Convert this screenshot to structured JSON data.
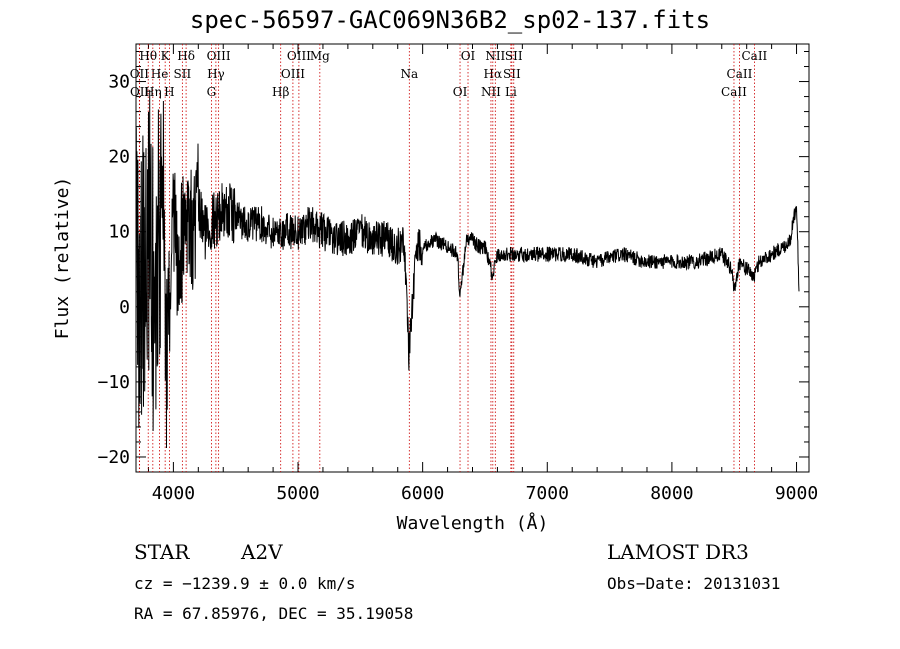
{
  "chart_data": {
    "type": "line",
    "title": "spec-56597-GAC069N36B2_sp02-137.fits",
    "xlabel": "Wavelength (Å)",
    "ylabel": "Flux (relative)",
    "xlim": [
      3700,
      9100
    ],
    "ylim": [
      -22,
      35
    ],
    "xticks": [
      4000,
      5000,
      6000,
      7000,
      8000,
      9000
    ],
    "yticks": [
      -20,
      -10,
      0,
      10,
      20,
      30
    ],
    "grid": false,
    "series": [
      {
        "name": "flux",
        "x": [
          3700,
          3750,
          3800,
          3850,
          3900,
          3950,
          4000,
          4050,
          4100,
          4150,
          4200,
          4250,
          4300,
          4350,
          4400,
          4500,
          4600,
          4700,
          4800,
          4900,
          5000,
          5100,
          5200,
          5300,
          5400,
          5500,
          5600,
          5700,
          5800,
          5850,
          5890,
          5950,
          6000,
          6100,
          6200,
          6280,
          6300,
          6350,
          6400,
          6450,
          6500,
          6563,
          6600,
          6700,
          6800,
          6900,
          7000,
          7200,
          7400,
          7600,
          7800,
          8000,
          8200,
          8400,
          8480,
          8500,
          8540,
          8600,
          8662,
          8700,
          8800,
          8900,
          8950,
          9000,
          9020
        ],
        "y": [
          5,
          2,
          12,
          0,
          16,
          -5,
          10,
          6,
          14,
          9,
          13,
          10,
          11,
          12,
          13,
          12,
          11,
          11,
          10,
          10,
          10,
          11,
          10,
          9,
          9,
          10,
          9,
          9,
          8,
          9,
          -6,
          8,
          8,
          9,
          8,
          7,
          1,
          9,
          9,
          8,
          8,
          4,
          7,
          7,
          7,
          7,
          7,
          7,
          6,
          7,
          6,
          6,
          6,
          7,
          5,
          2,
          6,
          5,
          4,
          6,
          7,
          8,
          9,
          14,
          2
        ]
      }
    ],
    "lines": [
      {
        "label": "Hθ",
        "wl": 3798
      },
      {
        "label": "OII",
        "wl": 3727
      },
      {
        "label": "OII",
        "wl": 3729
      },
      {
        "label": "K",
        "wl": 3934
      },
      {
        "label": "He",
        "wl": 3889
      },
      {
        "label": "Hη",
        "wl": 3835
      },
      {
        "label": "Hδ",
        "wl": 4102
      },
      {
        "label": "SII",
        "wl": 4072
      },
      {
        "label": "H",
        "wl": 3968
      },
      {
        "label": "OIII",
        "wl": 4363
      },
      {
        "label": "Hγ",
        "wl": 4341
      },
      {
        "label": "G",
        "wl": 4305
      },
      {
        "label": "OIII",
        "wl": 5007
      },
      {
        "label": "OIII",
        "wl": 4959
      },
      {
        "label": "Hβ",
        "wl": 4861
      },
      {
        "label": "Mg",
        "wl": 5175
      },
      {
        "label": "Na",
        "wl": 5893
      },
      {
        "label": "OI",
        "wl": 6300
      },
      {
        "label": "OI",
        "wl": 6364
      },
      {
        "label": "Hα",
        "wl": 6563
      },
      {
        "label": "NII",
        "wl": 6548
      },
      {
        "label": "NII",
        "wl": 6583
      },
      {
        "label": "SII",
        "wl": 6716
      },
      {
        "label": "Li",
        "wl": 6708
      },
      {
        "label": "SII",
        "wl": 6731
      },
      {
        "label": "CaII",
        "wl": 8542
      },
      {
        "label": "CaII",
        "wl": 8498
      },
      {
        "label": "CaII",
        "wl": 8662
      }
    ]
  },
  "info": {
    "class": "STAR",
    "subclass": "A2V",
    "survey": "LAMOST DR3",
    "cz": "cz = −1239.9 ± 0.0 km/s",
    "obs_date": "Obs−Date: 20131031",
    "coords": "RA =  67.85976, DEC =  35.19058"
  },
  "colors": {
    "axis": "#000000",
    "line": "#000000",
    "marker": "#cc0000"
  }
}
